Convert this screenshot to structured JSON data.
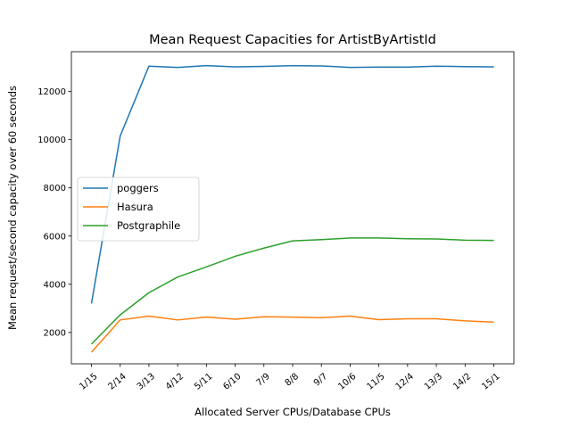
{
  "chart_data": {
    "type": "line",
    "title": "Mean Request Capacities for ArtistByArtistId",
    "xlabel": "Allocated Server CPUs/Database CPUs",
    "ylabel": "Mean request/second capacity over 60 seconds",
    "categories": [
      "1/15",
      "2/14",
      "3/13",
      "4/12",
      "5/11",
      "6/10",
      "7/9",
      "8/8",
      "9/7",
      "10/6",
      "11/5",
      "12/4",
      "13/3",
      "14/2",
      "15/1"
    ],
    "ylim": [
      700,
      13650
    ],
    "yticks": [
      2000,
      4000,
      6000,
      8000,
      10000,
      12000
    ],
    "grid": false,
    "legend_position": "center-left",
    "series": [
      {
        "name": "poggers",
        "color": "#1f77b4",
        "values": [
          3200,
          10150,
          13050,
          13000,
          13070,
          13020,
          13040,
          13070,
          13060,
          13000,
          13010,
          13010,
          13050,
          13030,
          13020
        ]
      },
      {
        "name": "Hasura",
        "color": "#ff7f0e",
        "values": [
          1180,
          2520,
          2680,
          2520,
          2640,
          2550,
          2650,
          2640,
          2610,
          2680,
          2530,
          2570,
          2570,
          2480,
          2430
        ]
      },
      {
        "name": "Postgraphile",
        "color": "#2ca02c",
        "values": [
          1520,
          2730,
          3650,
          4300,
          4720,
          5160,
          5500,
          5800,
          5850,
          5920,
          5920,
          5890,
          5880,
          5830,
          5820
        ]
      }
    ]
  }
}
